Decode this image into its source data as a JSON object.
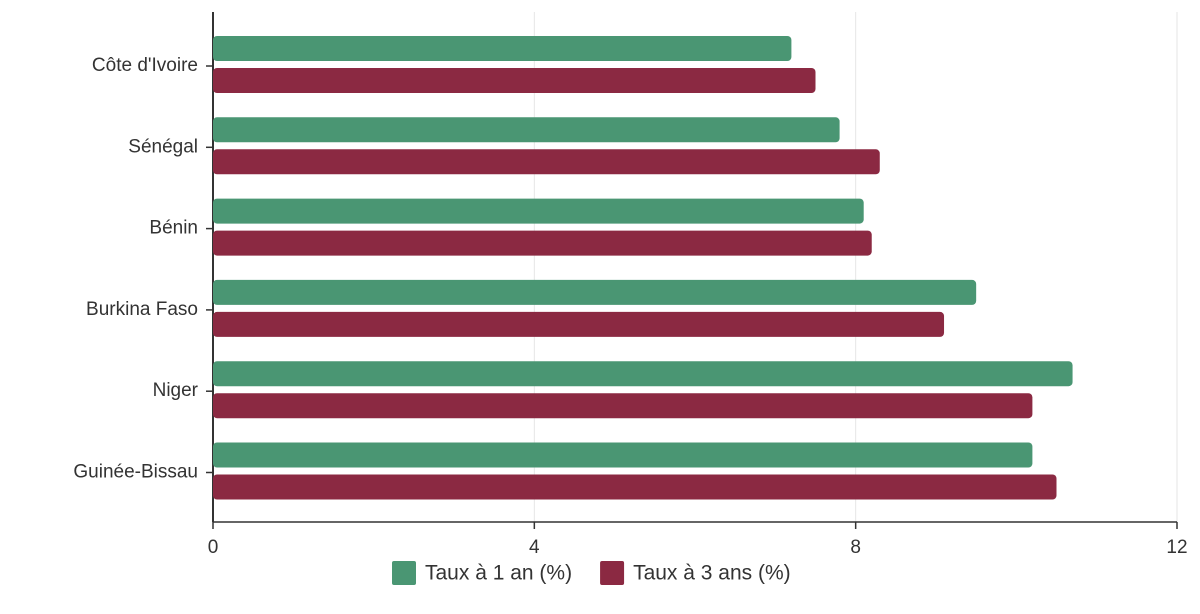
{
  "chart_data": {
    "type": "bar",
    "orientation": "horizontal",
    "categories": [
      "Côte d'Ivoire",
      "Sénégal",
      "Bénin",
      "Burkina Faso",
      "Niger",
      "Guinée-Bissau"
    ],
    "series": [
      {
        "name": "Taux à 1 an (%)",
        "color": "#4a9673",
        "values": [
          7.2,
          7.8,
          8.1,
          9.5,
          10.7,
          10.2
        ]
      },
      {
        "name": "Taux à 3 ans (%)",
        "color": "#8b2942",
        "values": [
          7.5,
          8.3,
          8.2,
          9.1,
          10.2,
          10.5
        ]
      }
    ],
    "xlim": [
      0,
      12
    ],
    "xticks": [
      0,
      4,
      8,
      12
    ],
    "grid": true,
    "legend": "bottom"
  }
}
